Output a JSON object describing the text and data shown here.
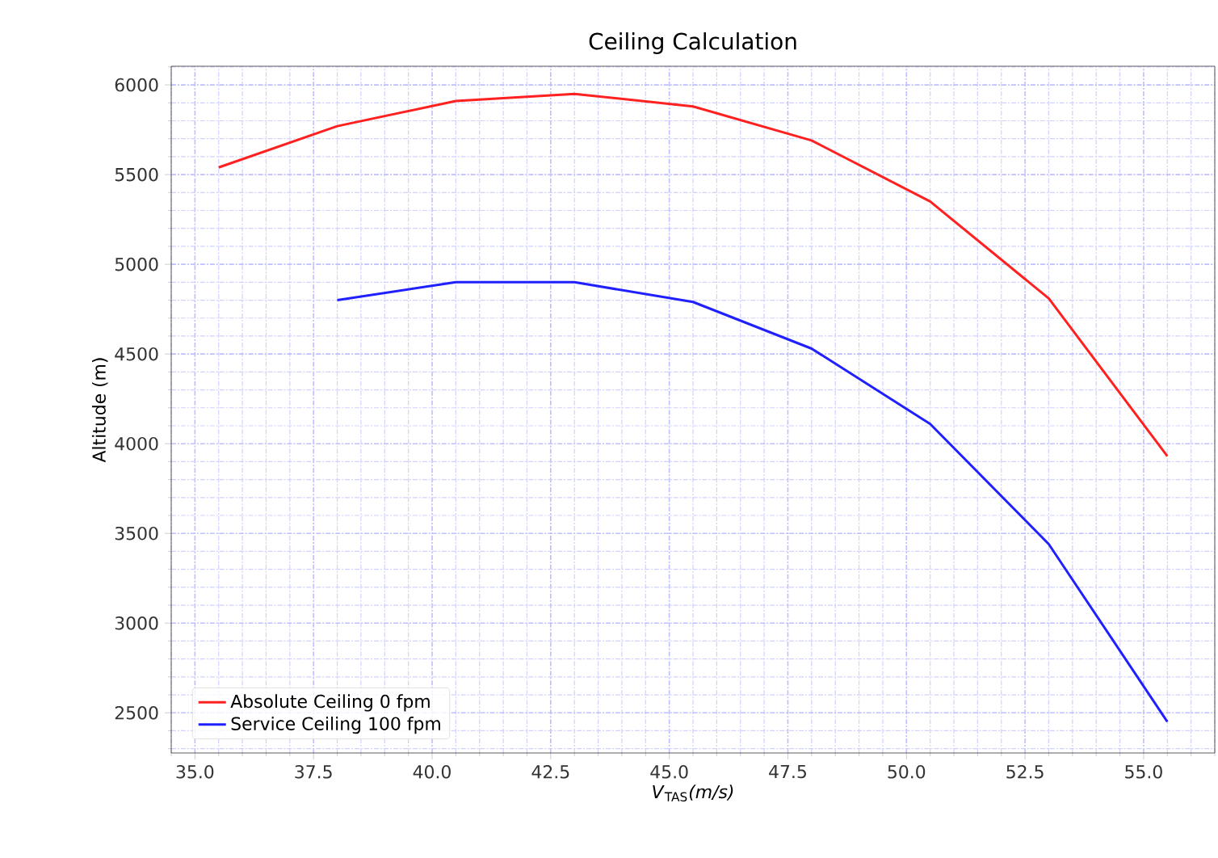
{
  "chart_data": {
    "type": "line",
    "title": "Ceiling Calculation",
    "xlabel": "*V*$_{TAS}$*(m/s)*",
    "ylabel": "Altitude (m)",
    "x": [
      35.5,
      38,
      40.5,
      43,
      45.5,
      48,
      50.5,
      53,
      55.5
    ],
    "series": [
      {
        "name": "Absolute Ceiling 0 fpm",
        "color": "#ff2020",
        "values": [
          5540,
          5770,
          5910,
          5950,
          5880,
          5690,
          5350,
          4810,
          3930
        ]
      },
      {
        "name": "Service Ceiling 100 fpm",
        "color": "#2020ff",
        "values": [
          null,
          4800,
          4900,
          4900,
          4790,
          4530,
          4110,
          3440,
          2450
        ]
      }
    ],
    "xlim": [
      34.5,
      56.5
    ],
    "ylim": [
      2276,
      6104
    ],
    "xticks": [
      {
        "value": 35,
        "label": "35.0"
      },
      {
        "value": 37.5,
        "label": "37.5"
      },
      {
        "value": 40,
        "label": "40.0"
      },
      {
        "value": 42.5,
        "label": "42.5"
      },
      {
        "value": 45,
        "label": "45.0"
      },
      {
        "value": 47.5,
        "label": "47.5"
      },
      {
        "value": 50,
        "label": "50.0"
      },
      {
        "value": 52.5,
        "label": "52.5"
      },
      {
        "value": 55,
        "label": "55.0"
      },
      {
        "value": 34.5,
        "label": null
      },
      {
        "value": 35.5,
        "label": null
      },
      {
        "value": 36,
        "label": null
      },
      {
        "value": 36.5,
        "label": null
      },
      {
        "value": 37,
        "label": null
      },
      {
        "value": 38,
        "label": null
      },
      {
        "value": 38.5,
        "label": null
      },
      {
        "value": 39,
        "label": null
      },
      {
        "value": 39.5,
        "label": null
      },
      {
        "value": 40.5,
        "label": null
      },
      {
        "value": 41,
        "label": null
      },
      {
        "value": 41.5,
        "label": null
      },
      {
        "value": 42,
        "label": null
      },
      {
        "value": 43,
        "label": null
      },
      {
        "value": 43.5,
        "label": null
      },
      {
        "value": 44,
        "label": null
      },
      {
        "value": 44.5,
        "label": null
      },
      {
        "value": 45.5,
        "label": null
      },
      {
        "value": 46,
        "label": null
      },
      {
        "value": 46.5,
        "label": null
      },
      {
        "value": 47,
        "label": null
      },
      {
        "value": 48,
        "label": null
      },
      {
        "value": 48.5,
        "label": null
      },
      {
        "value": 49,
        "label": null
      },
      {
        "value": 49.5,
        "label": null
      },
      {
        "value": 50.5,
        "label": null
      },
      {
        "value": 51,
        "label": null
      },
      {
        "value": 51.5,
        "label": null
      },
      {
        "value": 52,
        "label": null
      },
      {
        "value": 53,
        "label": null
      },
      {
        "value": 53.5,
        "label": null
      },
      {
        "value": 54,
        "label": null
      },
      {
        "value": 54.5,
        "label": null
      },
      {
        "value": 55.5,
        "label": null
      },
      {
        "value": 56,
        "label": null
      },
      {
        "value": 56.5,
        "label": null
      }
    ],
    "yticks": [
      2500,
      3000,
      3500,
      4000,
      4500,
      5000,
      5500,
      6000,
      {
        "value": 2300,
        "label": null
      },
      {
        "value": 2400,
        "label": null
      },
      {
        "value": 2600,
        "label": null
      },
      {
        "value": 2700,
        "label": null
      },
      {
        "value": 2800,
        "label": null
      },
      {
        "value": 2900,
        "label": null
      },
      {
        "value": 3100,
        "label": null
      },
      {
        "value": 3200,
        "label": null
      },
      {
        "value": 3300,
        "label": null
      },
      {
        "value": 3400,
        "label": null
      },
      {
        "value": 3600,
        "label": null
      },
      {
        "value": 3700,
        "label": null
      },
      {
        "value": 3800,
        "label": null
      },
      {
        "value": 3900,
        "label": null
      },
      {
        "value": 4100,
        "label": null
      },
      {
        "value": 4200,
        "label": null
      },
      {
        "value": 4300,
        "label": null
      },
      {
        "value": 4400,
        "label": null
      },
      {
        "value": 4600,
        "label": null
      },
      {
        "value": 4700,
        "label": null
      },
      {
        "value": 4800,
        "label": null
      },
      {
        "value": 4900,
        "label": null
      },
      {
        "value": 5100,
        "label": null
      },
      {
        "value": 5200,
        "label": null
      },
      {
        "value": 5300,
        "label": null
      },
      {
        "value": 5400,
        "label": null
      },
      {
        "value": 5600,
        "label": null
      },
      {
        "value": 5700,
        "label": null
      },
      {
        "value": 5800,
        "label": null
      },
      {
        "value": 5900,
        "label": null
      },
      {
        "value": 6100,
        "label": null
      }
    ],
    "grid": true,
    "legend": "bottom left",
    "line_style": "solid"
  }
}
